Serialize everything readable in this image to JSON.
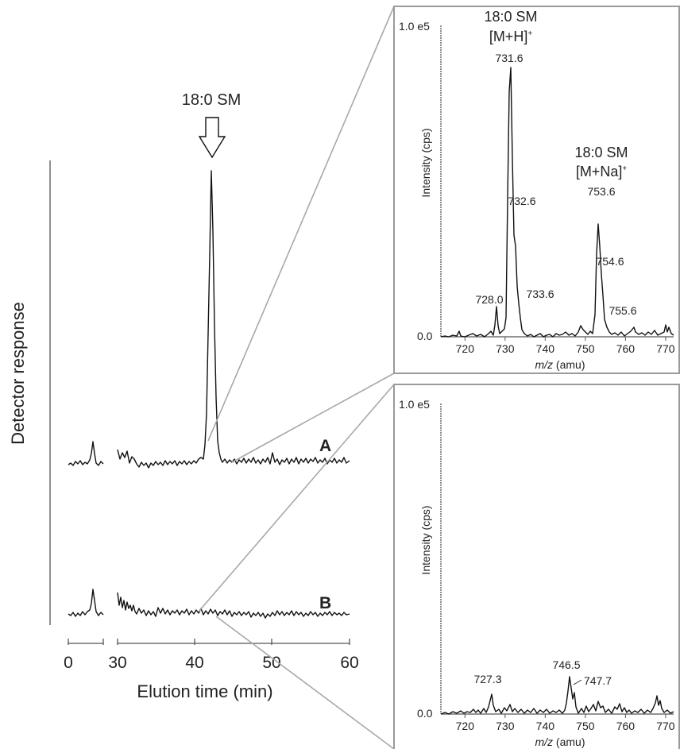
{
  "chart_data": [
    {
      "type": "line",
      "xlabel": "Elution time (min)",
      "ylabel": "Detector response",
      "x_ticks_segment1": [
        "0"
      ],
      "x_ticks_segment2": [
        "30",
        "40",
        "50",
        "60"
      ],
      "peak_annotation": "18:0 SM",
      "series": [
        {
          "name": "A",
          "x": [
            0,
            3,
            5,
            7,
            8,
            10,
            30,
            32,
            35,
            38,
            40,
            41,
            42,
            42.5,
            43,
            44,
            45,
            48,
            50,
            52,
            55,
            58,
            60
          ],
          "y": [
            0.02,
            0.03,
            0.01,
            0.18,
            0.03,
            0.02,
            0.12,
            0.05,
            0.0,
            0.02,
            0.03,
            0.08,
            0.6,
            1.0,
            0.3,
            0.04,
            0.02,
            0.03,
            0.02,
            0.03,
            0.02,
            0.03,
            0.02
          ]
        },
        {
          "name": "B",
          "x": [
            0,
            3,
            5,
            7,
            8,
            10,
            30,
            31,
            33,
            35,
            38,
            40,
            42,
            45,
            48,
            50,
            52,
            55,
            58,
            60
          ],
          "y": [
            0.02,
            0.02,
            0.05,
            0.15,
            0.03,
            0.02,
            0.12,
            0.08,
            0.06,
            0.03,
            0.04,
            0.03,
            0.04,
            0.02,
            0.03,
            0.01,
            0.03,
            0.02,
            0.03,
            0.02
          ]
        }
      ]
    },
    {
      "type": "line",
      "xlabel_italic": "m/z",
      "xlabel_rest": " (amu)",
      "ylabel": "Intensity (cps)",
      "y_top_label": "1.0 e5",
      "y_bottom_label": "0.0",
      "xlim": [
        714,
        772
      ],
      "ylim": [
        0,
        100000
      ],
      "x_ticks": [
        "720",
        "730",
        "740",
        "750",
        "760",
        "770"
      ],
      "annotations": {
        "mh_title": "18:0 SM",
        "mh_ion": "[M+H]",
        "mh_sup": "+",
        "na_title": "18:0 SM",
        "na_ion": "[M+Na]",
        "na_sup": "+"
      },
      "peaks": [
        {
          "mz": 728.0,
          "intensity": 12000,
          "label": "728.0"
        },
        {
          "mz": 731.6,
          "intensity": 89000,
          "label": "731.6"
        },
        {
          "mz": 732.6,
          "intensity": 41000,
          "label": "732.6"
        },
        {
          "mz": 733.6,
          "intensity": 13000,
          "label": "733.6"
        },
        {
          "mz": 753.6,
          "intensity": 38000,
          "label": "753.6"
        },
        {
          "mz": 754.6,
          "intensity": 24000,
          "label": "754.6"
        },
        {
          "mz": 755.6,
          "intensity": 8000,
          "label": "755.6"
        }
      ]
    },
    {
      "type": "line",
      "xlabel_italic": "m/z",
      "xlabel_rest": " (amu)",
      "ylabel": "Intensity (cps)",
      "y_top_label": "1.0 e5",
      "y_bottom_label": "0.0",
      "xlim": [
        714,
        772
      ],
      "ylim": [
        0,
        100000
      ],
      "x_ticks": [
        "720",
        "730",
        "740",
        "750",
        "760",
        "770"
      ],
      "peaks": [
        {
          "mz": 727.3,
          "intensity": 7000,
          "label": "727.3"
        },
        {
          "mz": 746.5,
          "intensity": 13000,
          "label": "746.5"
        },
        {
          "mz": 747.7,
          "intensity": 10000,
          "label": "747.7"
        }
      ]
    }
  ]
}
